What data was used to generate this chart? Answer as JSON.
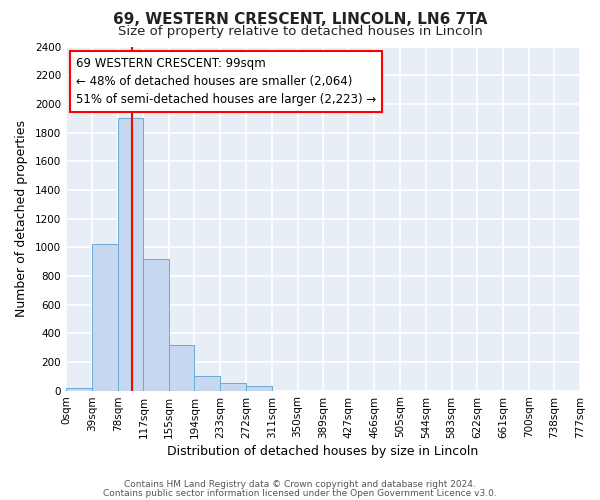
{
  "title": "69, WESTERN CRESCENT, LINCOLN, LN6 7TA",
  "subtitle": "Size of property relative to detached houses in Lincoln",
  "xlabel": "Distribution of detached houses by size in Lincoln",
  "ylabel": "Number of detached properties",
  "bar_color": "#c5d8ef",
  "bar_edge_color": "#6aaad4",
  "bin_edges": [
    0,
    39,
    78,
    117,
    155,
    194,
    233,
    272,
    311,
    350,
    389,
    427,
    466,
    505,
    544,
    583,
    622,
    661,
    700,
    738,
    777
  ],
  "bin_labels": [
    "0sqm",
    "39sqm",
    "78sqm",
    "117sqm",
    "155sqm",
    "194sqm",
    "233sqm",
    "272sqm",
    "311sqm",
    "350sqm",
    "389sqm",
    "427sqm",
    "466sqm",
    "505sqm",
    "544sqm",
    "583sqm",
    "622sqm",
    "661sqm",
    "700sqm",
    "738sqm",
    "777sqm"
  ],
  "bar_heights": [
    20,
    1020,
    1900,
    920,
    315,
    105,
    55,
    30,
    0,
    0,
    0,
    0,
    0,
    0,
    0,
    0,
    0,
    0,
    0,
    0
  ],
  "ylim": [
    0,
    2400
  ],
  "yticks": [
    0,
    200,
    400,
    600,
    800,
    1000,
    1200,
    1400,
    1600,
    1800,
    2000,
    2200,
    2400
  ],
  "red_line_x": 99,
  "annotation_line1": "69 WESTERN CRESCENT: 99sqm",
  "annotation_line2": "← 48% of detached houses are smaller (2,064)",
  "annotation_line3": "51% of semi-detached houses are larger (2,223) →",
  "footer_line1": "Contains HM Land Registry data © Crown copyright and database right 2024.",
  "footer_line2": "Contains public sector information licensed under the Open Government Licence v3.0.",
  "figure_bg": "#ffffff",
  "axes_bg": "#e8eef5",
  "grid_color": "#ffffff",
  "title_fontsize": 11,
  "subtitle_fontsize": 9.5,
  "axis_label_fontsize": 9,
  "tick_fontsize": 7.5,
  "annotation_fontsize": 8.5,
  "footer_fontsize": 6.5
}
